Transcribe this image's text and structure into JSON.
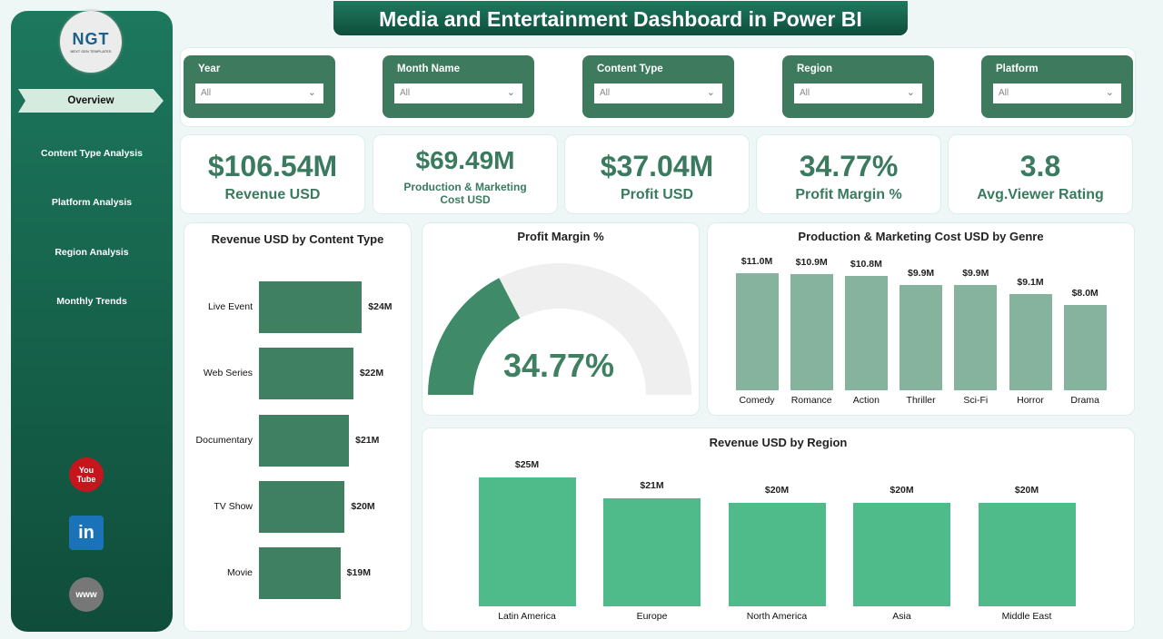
{
  "title": "Media and Entertainment Dashboard in Power BI",
  "logo": {
    "text": "NGT",
    "tagline": "NEXT GEN TEMPLATES"
  },
  "nav": [
    {
      "label": "Overview",
      "active": true
    },
    {
      "label": "Content Type Analysis"
    },
    {
      "label": "Platform Analysis"
    },
    {
      "label": "Region Analysis"
    },
    {
      "label": "Monthly Trends"
    }
  ],
  "social": [
    {
      "icon": "youtube-icon",
      "text": "You Tube",
      "color": "#c4161c"
    },
    {
      "icon": "linkedin-icon",
      "text": "in",
      "color": "#1a73b8"
    },
    {
      "icon": "globe-icon",
      "text": "www",
      "color": "#777777"
    }
  ],
  "filters": [
    {
      "label": "Year",
      "value": "All"
    },
    {
      "label": "Month Name",
      "value": "All"
    },
    {
      "label": "Content Type",
      "value": "All"
    },
    {
      "label": "Region",
      "value": "All"
    },
    {
      "label": "Platform",
      "value": "All"
    }
  ],
  "kpis": [
    {
      "value": "$106.54M",
      "label": "Revenue USD"
    },
    {
      "value": "$69.49M",
      "label": "Production & Marketing Cost USD"
    },
    {
      "value": "$37.04M",
      "label": "Profit USD"
    },
    {
      "value": "34.77%",
      "label": "Profit Margin %"
    },
    {
      "value": "3.8",
      "label": "Avg.Viewer Rating"
    }
  ],
  "colors": {
    "accent": "#3a7a5e",
    "content_bar": "#3f7f62",
    "genre_bar": "#85b39d",
    "region_bar": "#4fba8a",
    "gauge_fill": "#3f8a68",
    "gauge_bg": "#f0efef"
  },
  "chart_data": [
    {
      "type": "bar",
      "orientation": "horizontal",
      "title": "Revenue USD by Content Type",
      "categories": [
        "Live Event",
        "Web Series",
        "Documentary",
        "TV Show",
        "Movie"
      ],
      "values": [
        24,
        22,
        21,
        20,
        19
      ],
      "labels": [
        "$24M",
        "$22M",
        "$21M",
        "$20M",
        "$19M"
      ]
    },
    {
      "type": "gauge",
      "title": "Profit Margin %",
      "value": 34.77,
      "min": 0,
      "max": 100,
      "label": "34.77%"
    },
    {
      "type": "bar",
      "title": "Production & Marketing Cost USD by Genre",
      "categories": [
        "Comedy",
        "Romance",
        "Action",
        "Thriller",
        "Sci-Fi",
        "Horror",
        "Drama"
      ],
      "values": [
        11.0,
        10.9,
        10.8,
        9.9,
        9.9,
        9.1,
        8.0
      ],
      "labels": [
        "$11.0M",
        "$10.9M",
        "$10.8M",
        "$9.9M",
        "$9.9M",
        "$9.1M",
        "$8.0M"
      ]
    },
    {
      "type": "bar",
      "title": "Revenue USD by Region",
      "categories": [
        "Latin America",
        "Europe",
        "North America",
        "Asia",
        "Middle East"
      ],
      "values": [
        25,
        21,
        20,
        20,
        20
      ],
      "labels": [
        "$25M",
        "$21M",
        "$20M",
        "$20M",
        "$20M"
      ]
    }
  ]
}
